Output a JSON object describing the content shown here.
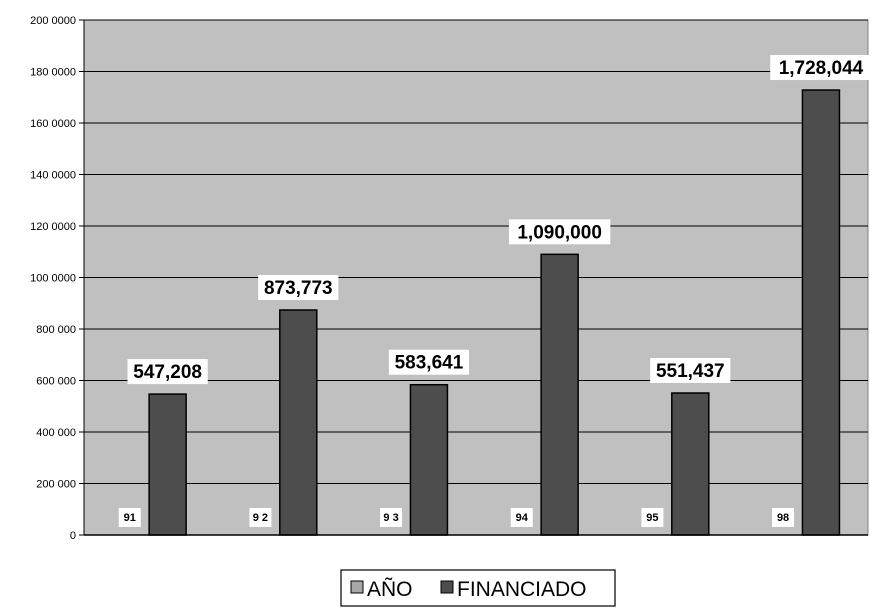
{
  "chart_data": {
    "type": "bar",
    "categories": [
      "91",
      "92",
      "93",
      "94",
      "95",
      "98"
    ],
    "category_labels": [
      "91",
      "9 2",
      "9 3",
      "94",
      "95",
      "98"
    ],
    "series": [
      {
        "name": "AÑO",
        "values": [
          91,
          92,
          93,
          94,
          95,
          98
        ],
        "color": "#a8a8a8"
      },
      {
        "name": "FINANCIADO",
        "values": [
          547208,
          873773,
          583641,
          1090000,
          551437,
          1728044
        ],
        "color": "#4d4d4d"
      }
    ],
    "data_labels": [
      "547,208",
      "873,773",
      "583,641",
      "1,090,000",
      "551,437",
      "1,728,044"
    ],
    "y_tick_labels": [
      "0",
      "200 000",
      "400 000",
      "600 000",
      "800 000",
      "100 0000",
      "120 0000",
      "140 0000",
      "160 0000",
      "180 0000",
      "200 0000"
    ],
    "ylim": [
      0,
      2000000
    ],
    "grid": true,
    "plot_background": "#c0c0c0",
    "legend_position": "bottom",
    "title": "",
    "xlabel": "",
    "ylabel": ""
  }
}
